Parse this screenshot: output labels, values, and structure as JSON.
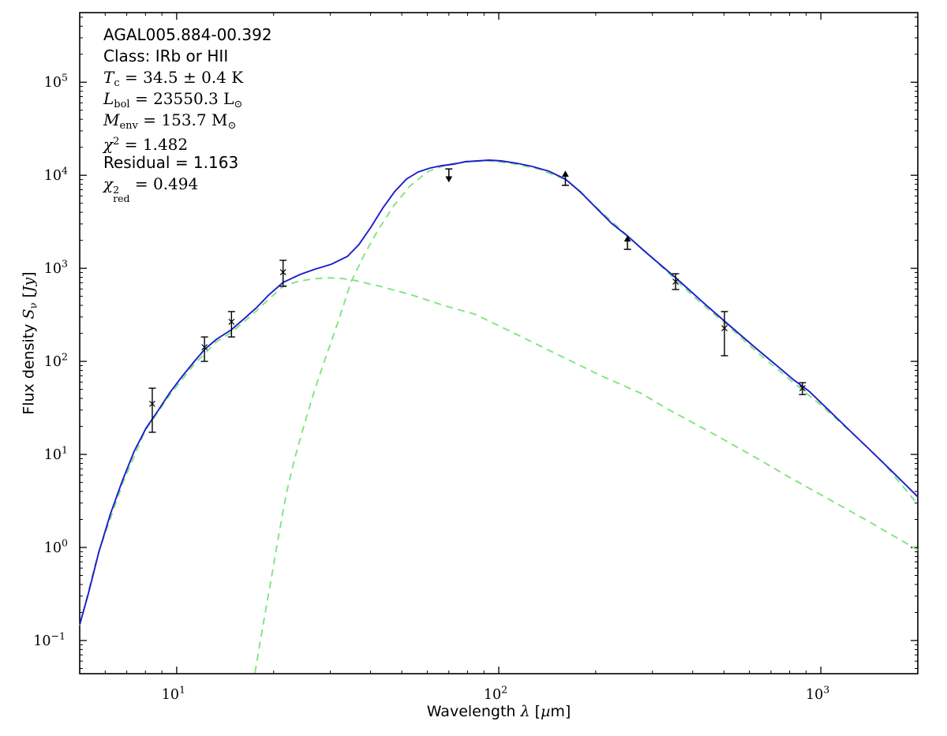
{
  "figure": {
    "background": "#ffffff",
    "annotation_lines": [
      {
        "font": "sans",
        "text": "AGAL005.884-00.392",
        "tokens": [
          [
            "t",
            "AGAL005.884-00.392"
          ]
        ]
      },
      {
        "font": "sans",
        "text": "Class: IRb or HII",
        "tokens": [
          [
            "t",
            "Class: IRb or HII"
          ]
        ]
      },
      {
        "font": "serif",
        "text": "T_c = 34.5 ± 0.4 K",
        "tokens": [
          [
            "i",
            "T"
          ],
          [
            "sub",
            "c"
          ],
          [
            "t",
            " = 34.5 ± 0.4 K"
          ]
        ]
      },
      {
        "font": "serif",
        "text": "L_bol = 23550.3 L_⊙",
        "tokens": [
          [
            "i",
            "L"
          ],
          [
            "sub",
            "bol"
          ],
          [
            "t",
            " = 23550.3 L"
          ],
          [
            "sub",
            "⊙"
          ]
        ]
      },
      {
        "font": "serif",
        "text": "M_env = 153.7 M_⊙",
        "tokens": [
          [
            "i",
            "M"
          ],
          [
            "sub",
            "env"
          ],
          [
            "t",
            " = 153.7 M"
          ],
          [
            "sub",
            "⊙"
          ]
        ]
      },
      {
        "font": "serif",
        "text": "χ² = 1.482",
        "tokens": [
          [
            "i",
            "χ"
          ],
          [
            "sup",
            "2"
          ],
          [
            "t",
            " = 1.482"
          ]
        ]
      },
      {
        "font": "sans",
        "text": "Residual = 1.163",
        "tokens": [
          [
            "t",
            "Residual = 1.163"
          ]
        ]
      },
      {
        "font": "serif",
        "text": "χ²_red = 0.494",
        "tokens": [
          [
            "i",
            "χ"
          ],
          [
            "stack",
            "2",
            "red"
          ],
          [
            "t",
            " = 0.494"
          ]
        ]
      }
    ]
  },
  "chart_data": {
    "type": "line",
    "title": "",
    "xlabel": "Wavelength λ [µm]",
    "ylabel": "Flux density S_ν [Jy]",
    "xlabel_tokens": [
      [
        "t",
        "Wavelength "
      ],
      [
        "i",
        "λ"
      ],
      [
        "t",
        " ["
      ],
      [
        "i",
        "µ"
      ],
      [
        "t",
        "m]"
      ]
    ],
    "ylabel_tokens": [
      [
        "t",
        "Flux density "
      ],
      [
        "i",
        "S"
      ],
      [
        "sub",
        "ν"
      ],
      [
        "t",
        " ["
      ],
      [
        "i",
        "Jy"
      ],
      [
        "t",
        "]"
      ]
    ],
    "x_scale": "log",
    "y_scale": "log",
    "xlim": [
      5,
      2000
    ],
    "ylim": [
      0.044,
      560000
    ],
    "grid": false,
    "legend": "none",
    "x_major_ticks": [
      10,
      100,
      1000
    ],
    "x_tick_exponents": [
      "1",
      "2",
      "3"
    ],
    "y_major_ticks": [
      0.1,
      1,
      10,
      100,
      1000,
      10000,
      100000
    ],
    "y_tick_exponents": [
      "−1",
      "0",
      "1",
      "2",
      "3",
      "4",
      "5"
    ],
    "colors": {
      "model_total": "#1c1ccf",
      "model_components": "#7fe57f",
      "data": "#000000"
    },
    "series": [
      {
        "name": "warm-component",
        "style": "dashed",
        "color": "#7fe57f",
        "points": [
          [
            5.0,
            0.145
          ],
          [
            5.7,
            0.85
          ],
          [
            6.8,
            4.9
          ],
          [
            8.0,
            18.3
          ],
          [
            9.5,
            43
          ],
          [
            11.3,
            92
          ],
          [
            13.3,
            163
          ],
          [
            14.8,
            205
          ],
          [
            16.3,
            272
          ],
          [
            17.7,
            350
          ],
          [
            19.3,
            465
          ],
          [
            21.4,
            640
          ],
          [
            24.0,
            730
          ],
          [
            26.6,
            770
          ],
          [
            29.7,
            790
          ],
          [
            32.5,
            778
          ],
          [
            35.5,
            745
          ],
          [
            42.9,
            640
          ],
          [
            53.9,
            515
          ],
          [
            67.3,
            400
          ],
          [
            84.1,
            322
          ],
          [
            112,
            200
          ],
          [
            149,
            123
          ],
          [
            208,
            70
          ],
          [
            278,
            45
          ],
          [
            333,
            31
          ],
          [
            459,
            17
          ],
          [
            640,
            8.9
          ],
          [
            804,
            5.6
          ],
          [
            1020,
            3.55
          ],
          [
            1410,
            1.9
          ],
          [
            2000,
            0.94
          ]
        ]
      },
      {
        "name": "cold-component",
        "style": "dashed",
        "color": "#7fe57f",
        "points": [
          [
            17.5,
            0.045
          ],
          [
            18.5,
            0.14
          ],
          [
            19.6,
            0.43
          ],
          [
            20.7,
            1.3
          ],
          [
            21.9,
            3.8
          ],
          [
            23.3,
            9.3
          ],
          [
            24.9,
            21
          ],
          [
            26.8,
            49
          ],
          [
            29.0,
            110
          ],
          [
            31.6,
            256
          ],
          [
            34.8,
            718
          ],
          [
            38.3,
            1420
          ],
          [
            42.4,
            2650
          ],
          [
            47.2,
            4680
          ],
          [
            52.9,
            7630
          ],
          [
            60.4,
            11010
          ],
          [
            69.6,
            13100
          ],
          [
            79.8,
            14130
          ],
          [
            91.9,
            14330
          ],
          [
            109,
            13480
          ],
          [
            132,
            11760
          ],
          [
            163,
            8860
          ],
          [
            208,
            4060
          ],
          [
            253,
            2180
          ],
          [
            308,
            1190
          ],
          [
            357,
            733
          ],
          [
            429,
            410
          ],
          [
            505,
            256
          ],
          [
            640,
            122
          ],
          [
            800,
            64
          ],
          [
            1010,
            33
          ],
          [
            1260,
            16.5
          ],
          [
            1560,
            8.2
          ],
          [
            2000,
            2.9
          ]
        ]
      },
      {
        "name": "total-fit",
        "style": "solid",
        "color": "#1c1ccf",
        "points": [
          [
            5.0,
            0.148
          ],
          [
            5.32,
            0.32
          ],
          [
            5.73,
            0.89
          ],
          [
            6.23,
            2.3
          ],
          [
            6.78,
            5.2
          ],
          [
            7.38,
            10.8
          ],
          [
            8.03,
            19.1
          ],
          [
            8.74,
            29.3
          ],
          [
            9.51,
            45.9
          ],
          [
            10.4,
            69
          ],
          [
            11.3,
            98
          ],
          [
            12.2,
            134
          ],
          [
            13.3,
            173
          ],
          [
            14.8,
            219
          ],
          [
            16.3,
            293
          ],
          [
            17.7,
            378
          ],
          [
            19.3,
            516
          ],
          [
            21.4,
            706
          ],
          [
            24.1,
            857
          ],
          [
            27.0,
            984
          ],
          [
            30.2,
            1106
          ],
          [
            33.9,
            1343
          ],
          [
            36.8,
            1800
          ],
          [
            40.1,
            2770
          ],
          [
            43.6,
            4420
          ],
          [
            47.5,
            6660
          ],
          [
            51.7,
            9100
          ],
          [
            56.2,
            10850
          ],
          [
            61.2,
            11970
          ],
          [
            66.6,
            12680
          ],
          [
            72.5,
            13190
          ],
          [
            78.9,
            13990
          ],
          [
            85.9,
            14260
          ],
          [
            93.4,
            14550
          ],
          [
            102,
            14260
          ],
          [
            114,
            13460
          ],
          [
            127,
            12450
          ],
          [
            143,
            11070
          ],
          [
            161,
            9100
          ],
          [
            179,
            6660
          ],
          [
            200,
            4510
          ],
          [
            224,
            3050
          ],
          [
            251,
            2230
          ],
          [
            281,
            1570
          ],
          [
            314,
            1130
          ],
          [
            354,
            794
          ],
          [
            394,
            569
          ],
          [
            441,
            401
          ],
          [
            502,
            271
          ],
          [
            568,
            187
          ],
          [
            636,
            134
          ],
          [
            733,
            89
          ],
          [
            820,
            64
          ],
          [
            918,
            48
          ],
          [
            1057,
            30
          ],
          [
            1217,
            18.7
          ],
          [
            1402,
            11.7
          ],
          [
            1661,
            6.6
          ],
          [
            2000,
            3.5
          ]
        ]
      }
    ],
    "data_points": [
      {
        "x": 8.4,
        "y": 35,
        "lo": 17.3,
        "hi": 51.5
      },
      {
        "x": 12.2,
        "y": 142,
        "lo": 100,
        "hi": 183
      },
      {
        "x": 14.8,
        "y": 266,
        "lo": 183,
        "hi": 343
      },
      {
        "x": 21.4,
        "y": 908,
        "lo": 640,
        "hi": 1219
      },
      {
        "x": 354,
        "y": 719,
        "lo": 592,
        "hi": 875
      },
      {
        "x": 502,
        "y": 227,
        "lo": 115,
        "hi": 343
      },
      {
        "x": 877,
        "y": 51.5,
        "lo": 44,
        "hi": 59
      }
    ],
    "limits": [
      {
        "x": 70,
        "y": 11700,
        "to": 9700,
        "dir": "down"
      },
      {
        "x": 161,
        "y": 7800,
        "to": 9700,
        "dir": "up"
      },
      {
        "x": 251,
        "y": 1600,
        "to": 1950,
        "dir": "up"
      }
    ]
  }
}
